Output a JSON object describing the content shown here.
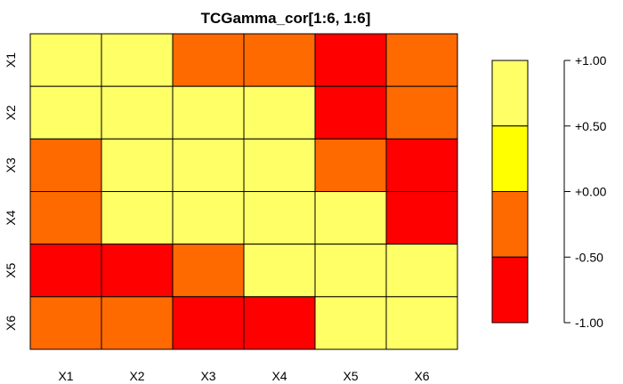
{
  "chart_data": {
    "type": "heatmap",
    "title": "TCGamma_cor[1:6, 1:6]",
    "xlabel": "",
    "ylabel": "",
    "x_categories": [
      "X1",
      "X2",
      "X3",
      "X4",
      "X5",
      "X6"
    ],
    "y_categories": [
      "X1",
      "X2",
      "X3",
      "X4",
      "X5",
      "X6"
    ],
    "values": [
      [
        1.0,
        0.7,
        -0.3,
        -0.3,
        -0.8,
        -0.3
      ],
      [
        0.7,
        1.0,
        0.7,
        0.7,
        -0.8,
        -0.3
      ],
      [
        -0.3,
        0.7,
        1.0,
        1.0,
        -0.3,
        -0.8
      ],
      [
        -0.3,
        0.7,
        1.0,
        1.0,
        0.7,
        -0.8
      ],
      [
        -0.8,
        -0.8,
        -0.3,
        0.7,
        1.0,
        0.7
      ],
      [
        -0.3,
        -0.3,
        -0.8,
        -0.8,
        0.7,
        1.0
      ]
    ],
    "value_range": [
      -1.0,
      1.0
    ],
    "color_breaks": [
      -1.0,
      -0.5,
      0.0,
      0.5,
      1.0
    ],
    "colors": [
      "#ff0000",
      "#ff6a00",
      "#ffff00",
      "#ffff66"
    ],
    "legend": {
      "position": "right",
      "tick_labels": [
        "+1.00",
        "+0.50",
        "+0.00",
        "-0.50",
        "-1.00"
      ]
    },
    "grid": false
  }
}
